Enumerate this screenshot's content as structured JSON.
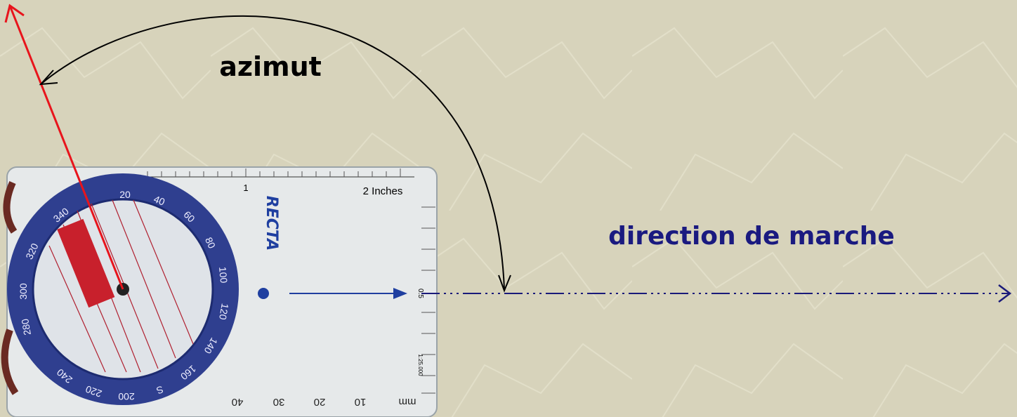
{
  "diagram": {
    "azimuth_label": "azimut",
    "direction_label": "direction de marche"
  },
  "compass": {
    "brand": "RECTA",
    "ruler_labels": [
      "1",
      "2 Inches"
    ],
    "scale_labels": [
      "0.5",
      "1:25.000"
    ],
    "mm_labels": [
      "mm",
      "10",
      "20",
      "30",
      "40"
    ],
    "dial_labels": [
      "20",
      "40",
      "60",
      "80",
      "100",
      "120",
      "140",
      "160",
      "S",
      "200",
      "220",
      "240",
      "280",
      "300",
      "320",
      "340"
    ]
  }
}
